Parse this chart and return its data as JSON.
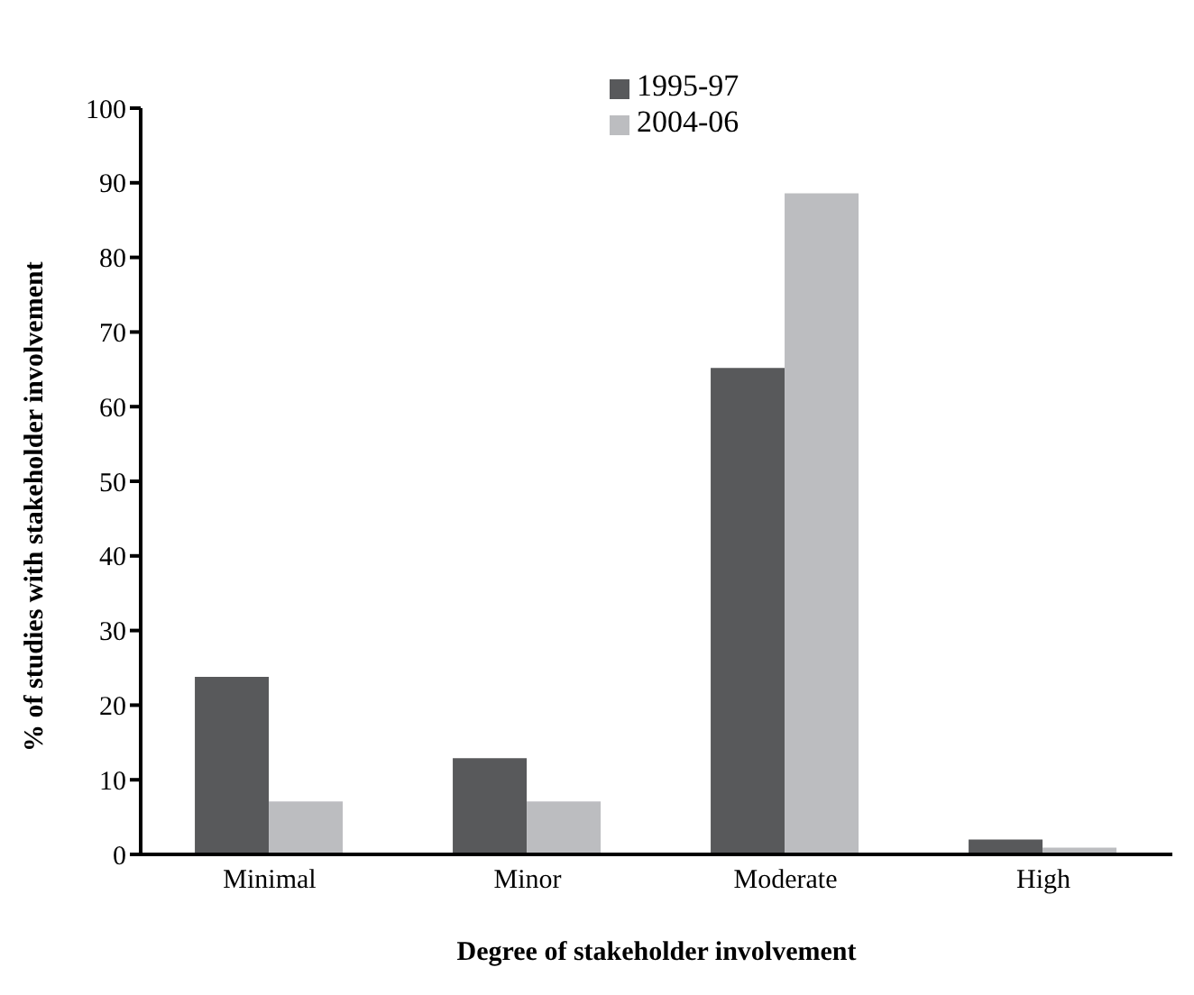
{
  "chart_data": {
    "type": "bar",
    "xlabel": "Degree of stakeholder involvement",
    "ylabel": "% of studies with stakeholder involvement",
    "categories": [
      "Minimal",
      "Minor",
      "Moderate",
      "High"
    ],
    "series": [
      {
        "name": "1995-97",
        "color": "#58595b",
        "values": [
          23.8,
          12.9,
          65.2,
          2.0
        ]
      },
      {
        "name": "2004-06",
        "color": "#bcbdc0",
        "values": [
          7.1,
          7.1,
          88.6,
          0.9
        ]
      }
    ],
    "ylim": [
      0,
      100
    ],
    "yticks": [
      0,
      10,
      20,
      30,
      40,
      50,
      60,
      70,
      80,
      90,
      100
    ],
    "grid": false,
    "legend": "top"
  }
}
